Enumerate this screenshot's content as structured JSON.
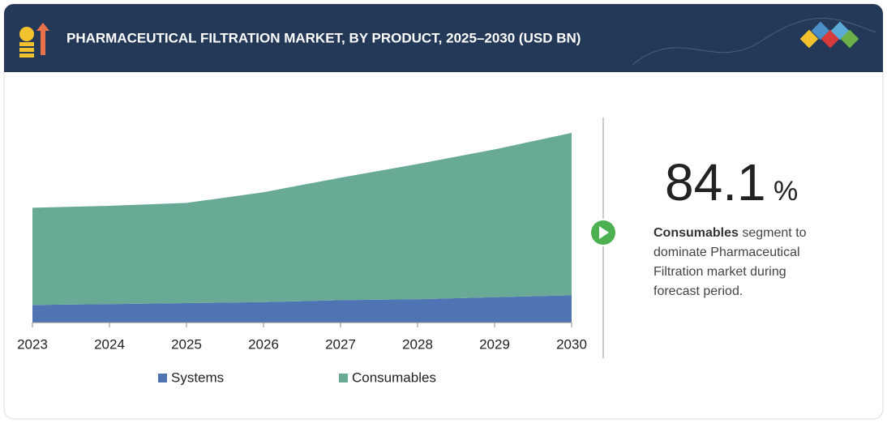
{
  "chart_data": {
    "type": "stacked-area",
    "title": "PHARMACEUTICAL FILTRATION  MARKET, BY PRODUCT, 2025–2030 (USD BN)",
    "categories": [
      "2023",
      "2024",
      "2025",
      "2026",
      "2027",
      "2028",
      "2029",
      "2030"
    ],
    "series": [
      {
        "name": "Systems",
        "color": "#4f74b3",
        "values": [
          1.8,
          1.9,
          2.0,
          2.1,
          2.3,
          2.4,
          2.6,
          2.8
        ]
      },
      {
        "name": "Consumables",
        "color": "#69aa96",
        "values": [
          10.0,
          10.1,
          10.3,
          11.3,
          12.6,
          13.9,
          15.2,
          16.7
        ]
      }
    ],
    "ylim": [
      0,
      21
    ],
    "highlight": {
      "value": 84.1,
      "unit": "%",
      "bold": "Consumables",
      "text": "segment to dominate Pharmaceutical Filtration market during forecast period."
    }
  }
}
